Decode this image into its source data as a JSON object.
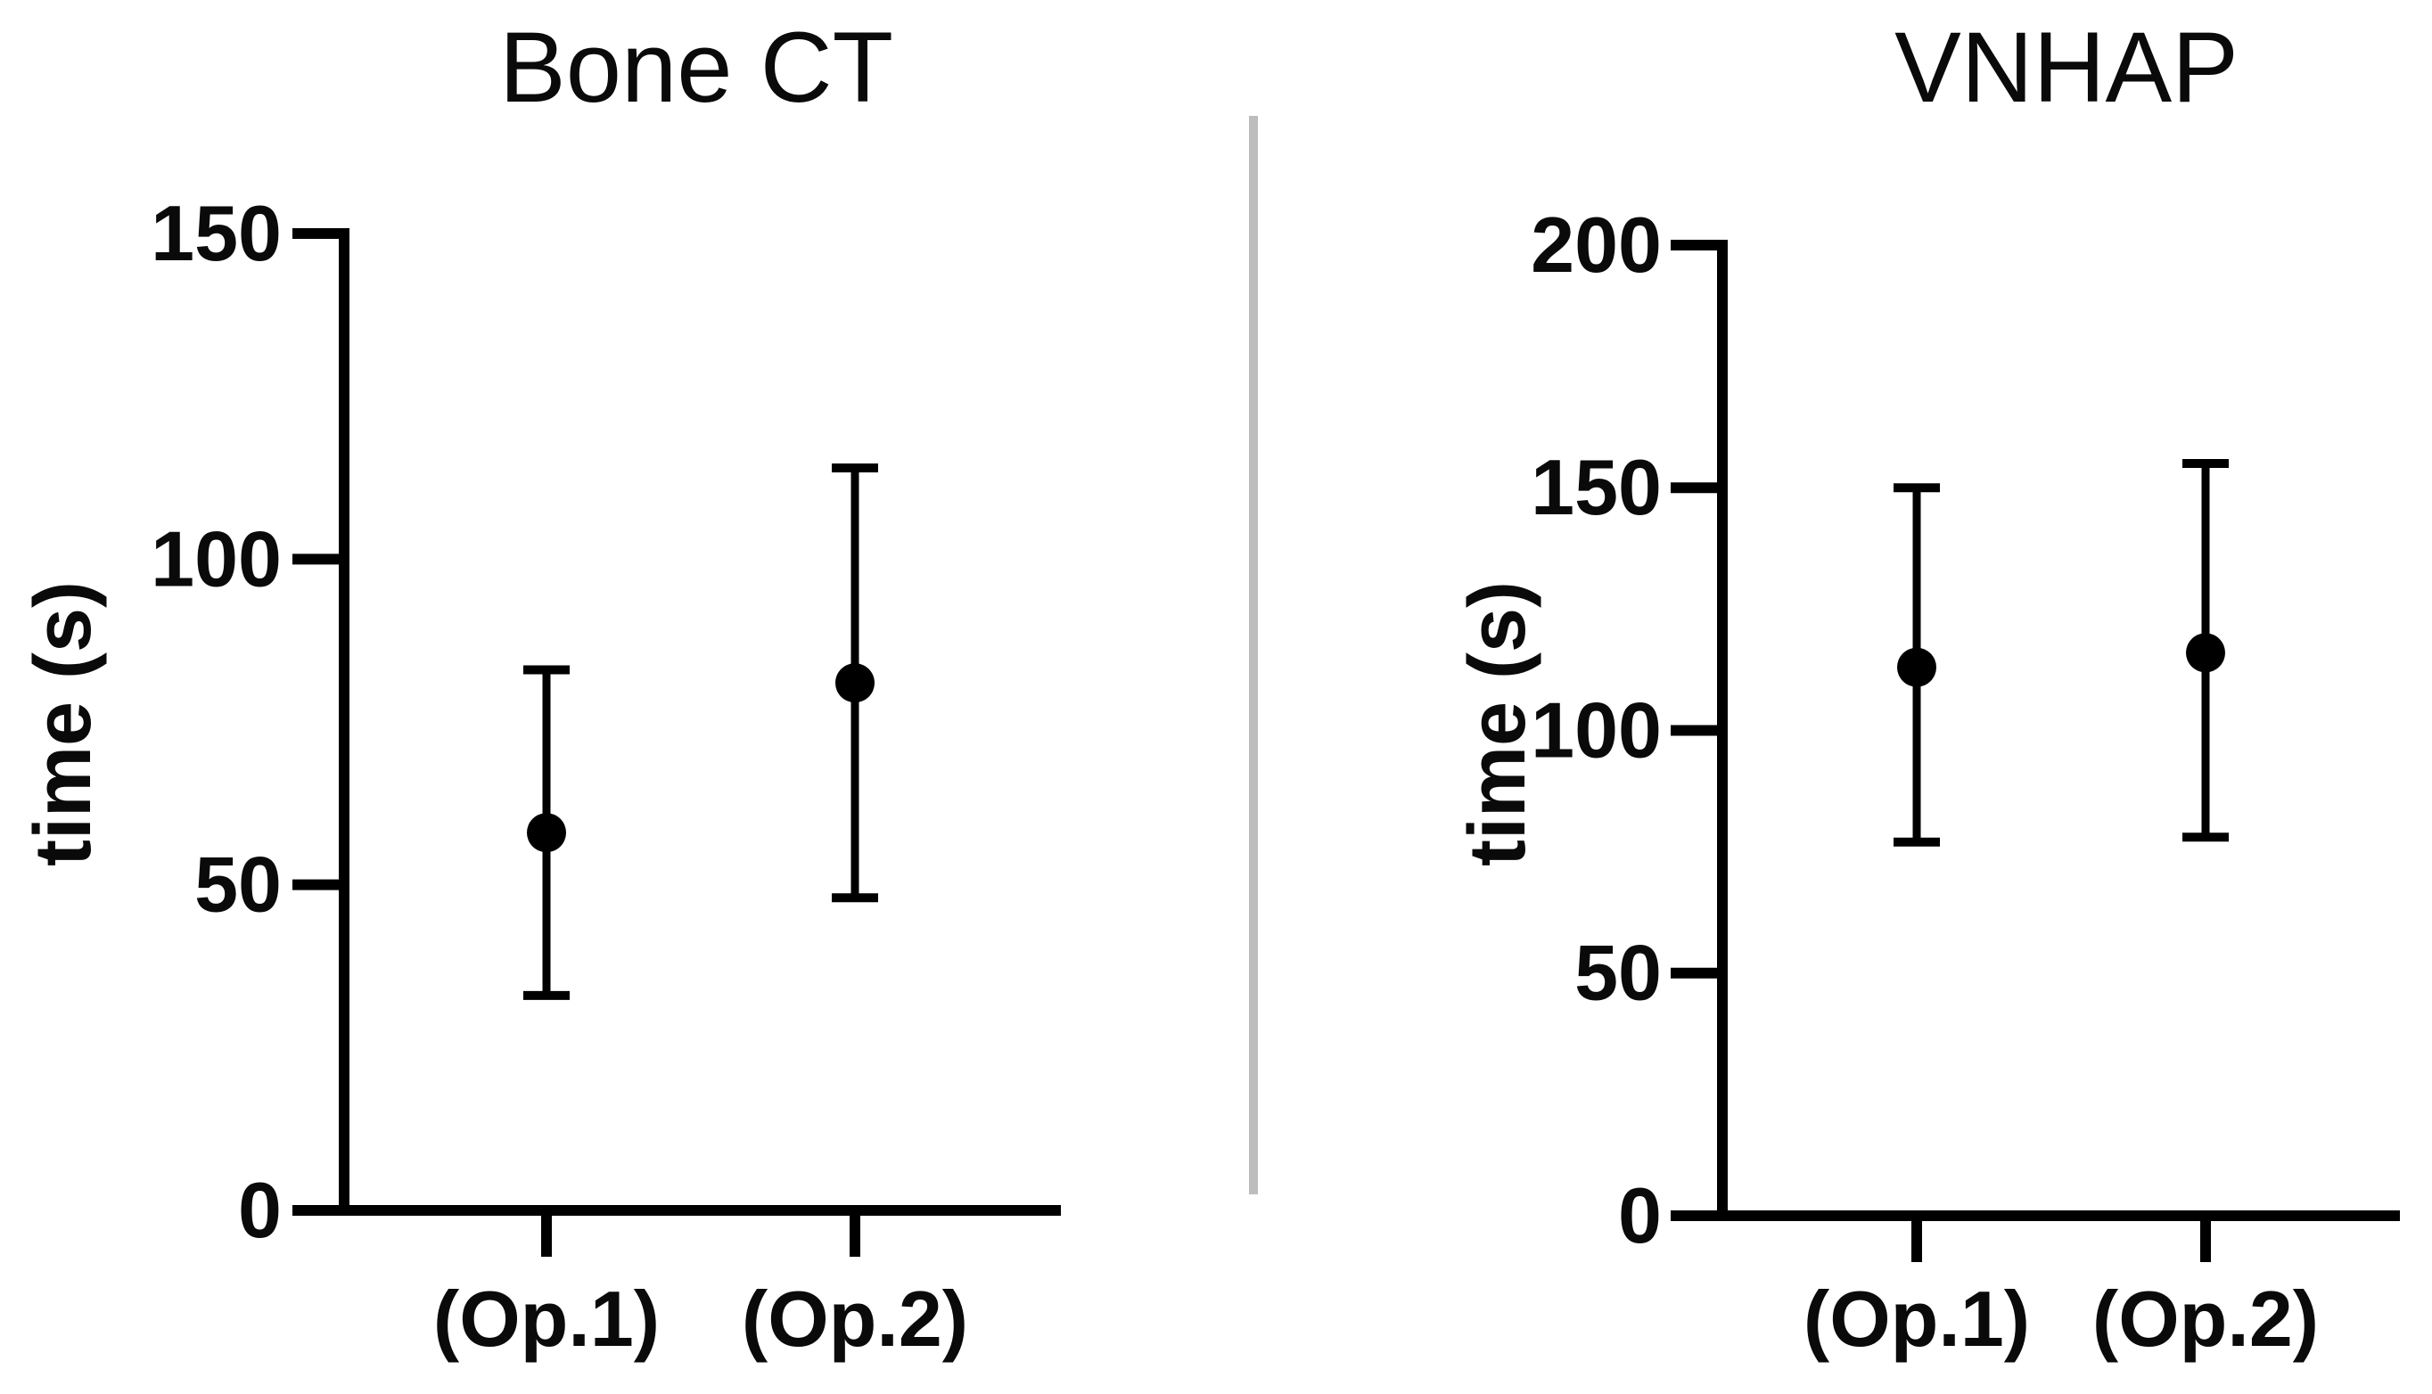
{
  "figure": {
    "background": "#ffffff",
    "ink_color": "#000000",
    "divider_color": "#bdbdbd"
  },
  "chart_data": [
    {
      "type": "scatter",
      "title": "Bone CT",
      "ylabel": "time (s)",
      "xlabel": "",
      "ylim": [
        0,
        150
      ],
      "yticks": [
        0,
        50,
        100,
        150
      ],
      "grid": false,
      "legend_position": "none",
      "marker": "filled-circle",
      "error_bar_style": "mean-with-sd-caps",
      "categories": [
        "(Op.1)",
        "(Op.2)"
      ],
      "points": [
        {
          "category": "(Op.1)",
          "mean": 58,
          "lower": 33,
          "upper": 83
        },
        {
          "category": "(Op.2)",
          "mean": 81,
          "lower": 48,
          "upper": 114
        }
      ]
    },
    {
      "type": "scatter",
      "title": "VNHAP",
      "ylabel": "time (s)",
      "xlabel": "",
      "ylim": [
        0,
        200
      ],
      "yticks": [
        0,
        50,
        100,
        150,
        200
      ],
      "grid": false,
      "legend_position": "none",
      "marker": "filled-circle",
      "error_bar_style": "mean-with-sd-caps",
      "categories": [
        "(Op.1)",
        "(Op.2)"
      ],
      "points": [
        {
          "category": "(Op.1)",
          "mean": 113,
          "lower": 77,
          "upper": 150
        },
        {
          "category": "(Op.2)",
          "mean": 116,
          "lower": 78,
          "upper": 155
        }
      ]
    }
  ]
}
